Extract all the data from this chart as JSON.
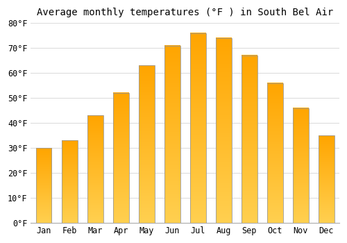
{
  "title": "Average monthly temperatures (°F ) in South Bel Air",
  "months": [
    "Jan",
    "Feb",
    "Mar",
    "Apr",
    "May",
    "Jun",
    "Jul",
    "Aug",
    "Sep",
    "Oct",
    "Nov",
    "Dec"
  ],
  "values": [
    30,
    33,
    43,
    52,
    63,
    71,
    76,
    74,
    67,
    56,
    46,
    35
  ],
  "bar_color": "#FFA500",
  "bar_color_light": "#FFD050",
  "bar_edge_color": "#999999",
  "ylim": [
    0,
    80
  ],
  "yticks": [
    0,
    10,
    20,
    30,
    40,
    50,
    60,
    70,
    80
  ],
  "background_color": "#FFFFFF",
  "grid_color": "#DDDDDD",
  "title_fontsize": 10,
  "tick_fontsize": 8.5,
  "font_family": "monospace"
}
